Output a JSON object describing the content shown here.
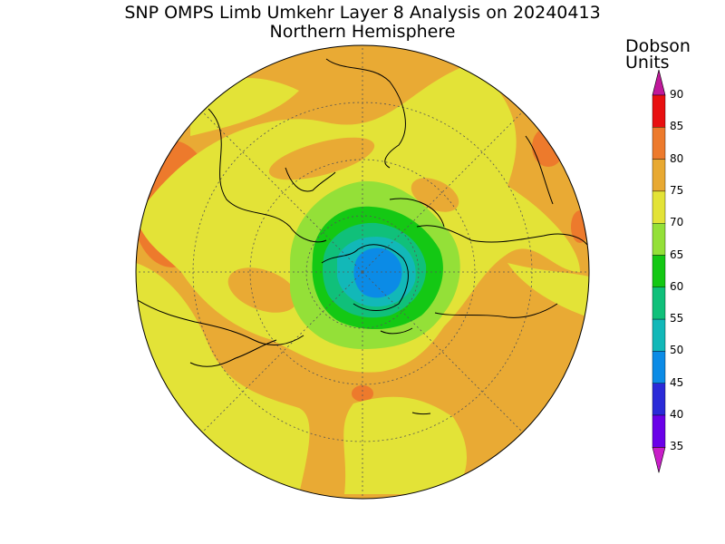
{
  "header": {
    "title": "SNP OMPS Limb Umkehr Layer 8 Analysis on 20240413",
    "subtitle": "Northern Hemisphere"
  },
  "colorbar": {
    "units_line1": "Dobson",
    "units_line2": "Units",
    "levels": [
      {
        "label": "35",
        "color": "#8b00d6"
      },
      {
        "label": "40",
        "color": "#6a00e8"
      },
      {
        "label": "45",
        "color": "#2a2ad8"
      },
      {
        "label": "50",
        "color": "#0b8be6"
      },
      {
        "label": "55",
        "color": "#12b8b8"
      },
      {
        "label": "60",
        "color": "#10c07a"
      },
      {
        "label": "65",
        "color": "#14c814"
      },
      {
        "label": "70",
        "color": "#94e038"
      },
      {
        "label": "75",
        "color": "#e3e337"
      },
      {
        "label": "80",
        "color": "#e8a932"
      },
      {
        "label": "85",
        "color": "#ed7a2c"
      },
      {
        "label": "90",
        "color": "#e81010"
      }
    ],
    "under_color": "#c81ec8",
    "over_color": "#c0189a"
  },
  "map": {
    "projection": "north polar stereographic",
    "base_color": "#e9aa34"
  }
}
